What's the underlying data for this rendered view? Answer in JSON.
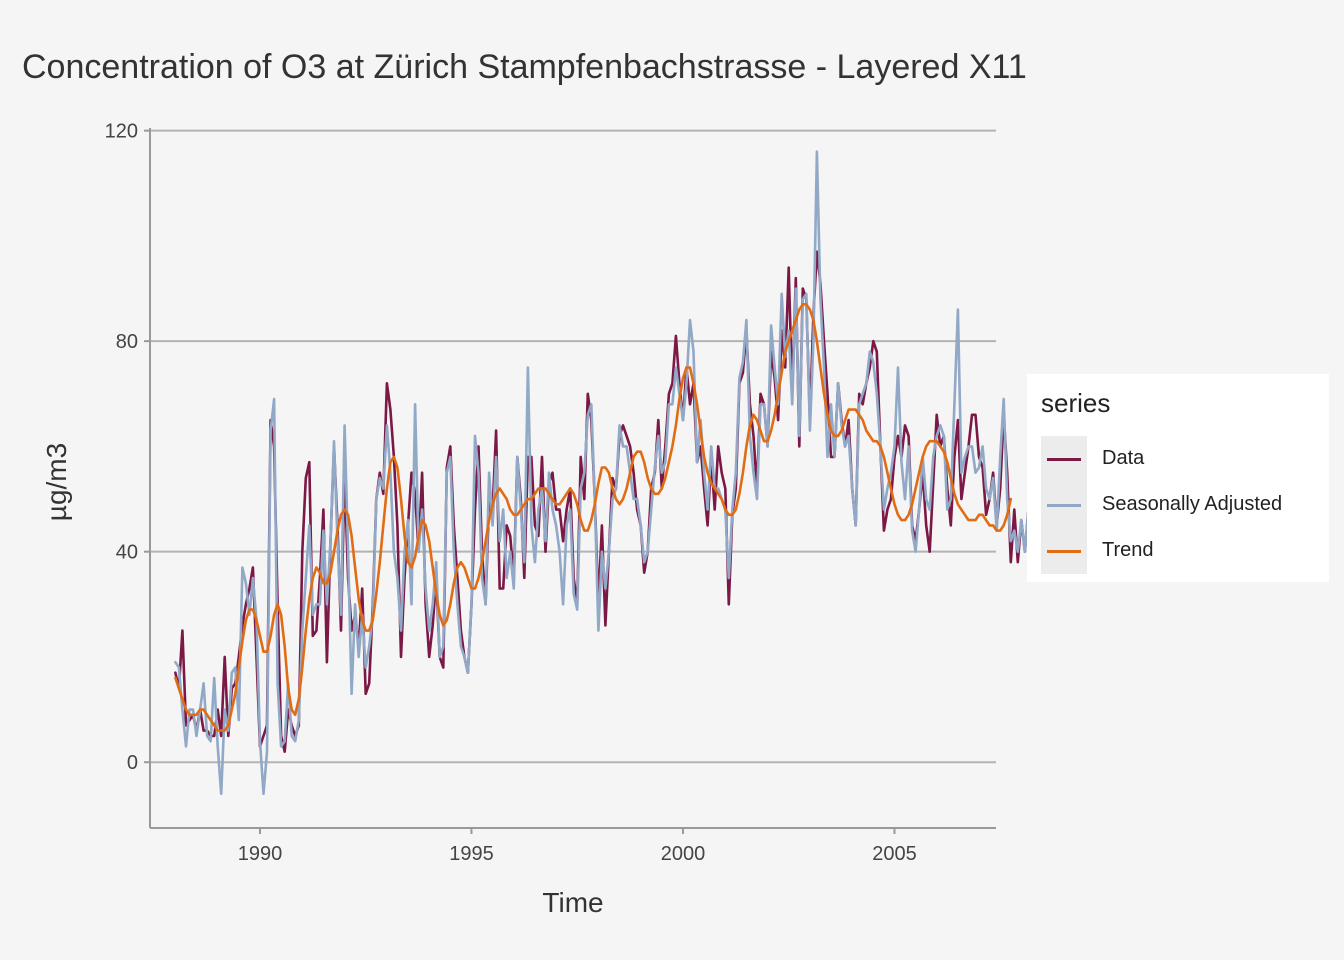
{
  "chart_data": {
    "type": "line",
    "title": "Concentration of O3 at Zürich Stampfenbachstrasse - Layered X11",
    "xlabel": "Time",
    "ylabel": "µg/m3",
    "xlim": [
      1987.4,
      2007.4
    ],
    "ylim": [
      -12.5,
      120.5
    ],
    "x_ticks": [
      1990,
      1995,
      2000,
      2005
    ],
    "y_ticks": [
      0,
      40,
      80,
      120
    ],
    "grid": "horizontal major",
    "legend": {
      "title": "series",
      "position": "right"
    },
    "series": [
      {
        "name": "Data",
        "color": "#7b1845",
        "x_start": 1988.0,
        "x_step": 0.08333,
        "values": [
          17,
          14,
          25,
          7,
          8,
          9,
          6,
          10,
          6,
          6,
          5,
          5,
          10,
          5,
          20,
          5,
          14,
          15,
          20,
          26,
          30,
          33,
          37,
          20,
          3,
          5,
          7,
          65,
          60,
          30,
          5,
          2,
          10,
          7,
          5,
          7,
          40,
          54,
          57,
          24,
          25,
          35,
          48,
          19,
          42,
          60,
          45,
          25,
          55,
          35,
          25,
          28,
          22,
          33,
          13,
          15,
          30,
          50,
          55,
          51,
          72,
          67,
          58,
          45,
          20,
          35,
          45,
          55,
          51,
          40,
          55,
          30,
          20,
          26,
          35,
          20,
          18,
          56,
          60,
          45,
          35,
          25,
          20,
          17,
          30,
          48,
          60,
          40,
          30,
          50,
          48,
          63,
          33,
          33,
          45,
          43,
          35,
          58,
          50,
          35,
          58,
          58,
          45,
          43,
          58,
          40,
          53,
          55,
          48,
          48,
          42,
          48,
          52,
          35,
          30,
          58,
          50,
          70,
          65,
          50,
          30,
          45,
          26,
          40,
          54,
          52,
          62,
          64,
          62,
          60,
          55,
          48,
          45,
          36,
          40,
          52,
          55,
          65,
          52,
          60,
          70,
          72,
          81,
          72,
          65,
          75,
          68,
          72,
          57,
          60,
          52,
          45,
          58,
          48,
          60,
          55,
          52,
          30,
          47,
          52,
          72,
          74,
          82,
          68,
          62,
          52,
          70,
          68,
          60,
          78,
          73,
          65,
          82,
          75,
          94,
          70,
          92,
          60,
          90,
          88,
          65,
          85,
          97,
          91,
          80,
          70,
          58,
          58,
          72,
          65,
          60,
          65,
          52,
          45,
          70,
          68,
          72,
          75,
          80,
          78,
          60,
          44,
          48,
          50,
          58,
          62,
          58,
          64,
          62,
          45,
          42,
          48,
          55,
          45,
          40,
          53,
          66,
          60,
          62,
          52,
          45,
          58,
          65,
          50,
          55,
          60,
          66,
          66,
          58,
          56,
          47,
          50,
          55,
          45,
          52,
          66,
          55,
          38,
          48,
          38,
          46,
          40,
          48,
          43,
          45,
          46,
          55
        ]
      },
      {
        "name": "Seasonally Adjusted",
        "color": "#91a8c7",
        "x_start": 1988.0,
        "x_step": 0.08333,
        "values": [
          19,
          18,
          10,
          3,
          10,
          10,
          5,
          10,
          15,
          5,
          4,
          16,
          3,
          -6,
          10,
          6,
          17,
          18,
          8,
          37,
          34,
          28,
          35,
          27,
          4,
          -6,
          2,
          63,
          69,
          15,
          3,
          4,
          15,
          5,
          4,
          8,
          25,
          35,
          45,
          28,
          30,
          30,
          44,
          30,
          42,
          61,
          42,
          28,
          64,
          40,
          13,
          30,
          20,
          28,
          18,
          22,
          28,
          50,
          54,
          52,
          64,
          55,
          40,
          35,
          25,
          40,
          46,
          30,
          68,
          40,
          48,
          33,
          25,
          30,
          38,
          20,
          22,
          55,
          58,
          40,
          30,
          22,
          20,
          17,
          30,
          62,
          55,
          35,
          30,
          55,
          45,
          58,
          42,
          48,
          35,
          40,
          33,
          58,
          48,
          38,
          75,
          45,
          38,
          48,
          52,
          42,
          55,
          48,
          45,
          40,
          30,
          45,
          48,
          32,
          29,
          52,
          55,
          66,
          68,
          50,
          25,
          40,
          33,
          40,
          50,
          52,
          64,
          60,
          60,
          55,
          50,
          50,
          45,
          38,
          40,
          48,
          56,
          62,
          55,
          57,
          68,
          68,
          75,
          70,
          65,
          72,
          84,
          78,
          57,
          65,
          55,
          48,
          60,
          52,
          52,
          50,
          48,
          35,
          48,
          55,
          73,
          76,
          84,
          62,
          55,
          50,
          68,
          68,
          60,
          83,
          75,
          68,
          89,
          77,
          82,
          68,
          90,
          62,
          88,
          89,
          63,
          80,
          116,
          88,
          75,
          58,
          68,
          58,
          72,
          64,
          60,
          62,
          52,
          45,
          68,
          70,
          72,
          78,
          76,
          70,
          60,
          48,
          52,
          55,
          60,
          75,
          57,
          50,
          60,
          44,
          40,
          48,
          58,
          50,
          48,
          58,
          62,
          64,
          62,
          48,
          50,
          68,
          86,
          55,
          58,
          60,
          60,
          55,
          56,
          60,
          52,
          50,
          54,
          44,
          58,
          69,
          50,
          42,
          44,
          40,
          46,
          40,
          48,
          42,
          48,
          44,
          58
        ]
      },
      {
        "name": "Trend",
        "color": "#e06d15",
        "x_start": 1988.0,
        "x_step": 0.08333,
        "values": [
          16,
          14,
          12,
          10,
          9,
          9,
          9,
          10,
          10,
          9,
          8,
          7,
          6,
          6,
          6,
          7,
          10,
          13,
          18,
          23,
          27,
          29,
          29,
          27,
          24,
          21,
          21,
          24,
          28,
          30,
          28,
          22,
          14,
          10,
          9,
          12,
          18,
          25,
          31,
          35,
          37,
          36,
          34,
          34,
          36,
          40,
          44,
          47,
          48,
          47,
          43,
          37,
          31,
          27,
          25,
          25,
          27,
          32,
          38,
          45,
          52,
          57,
          58,
          56,
          50,
          43,
          38,
          37,
          39,
          43,
          46,
          45,
          42,
          37,
          32,
          28,
          26,
          27,
          30,
          34,
          37,
          38,
          37,
          35,
          33,
          33,
          35,
          38,
          42,
          46,
          49,
          51,
          52,
          51,
          50,
          48,
          47,
          47,
          48,
          49,
          50,
          50,
          51,
          52,
          52,
          52,
          51,
          50,
          49,
          49,
          50,
          51,
          52,
          51,
          49,
          46,
          44,
          44,
          46,
          49,
          53,
          56,
          56,
          55,
          52,
          50,
          49,
          50,
          52,
          55,
          58,
          59,
          59,
          57,
          54,
          52,
          51,
          51,
          52,
          54,
          57,
          60,
          64,
          69,
          73,
          75,
          75,
          72,
          68,
          63,
          58,
          55,
          53,
          52,
          51,
          50,
          48,
          47,
          47,
          48,
          51,
          55,
          60,
          64,
          66,
          65,
          63,
          61,
          61,
          63,
          66,
          70,
          74,
          78,
          80,
          82,
          84,
          86,
          87,
          87,
          86,
          84,
          80,
          75,
          70,
          66,
          63,
          62,
          62,
          63,
          65,
          67,
          67,
          67,
          66,
          65,
          63,
          62,
          61,
          61,
          60,
          58,
          55,
          52,
          49,
          47,
          46,
          46,
          47,
          49,
          52,
          55,
          58,
          60,
          61,
          61,
          61,
          60,
          59,
          57,
          54,
          51,
          49,
          48,
          47,
          46,
          46,
          46,
          47,
          47,
          46,
          45,
          45,
          44,
          44,
          45,
          47,
          50
        ]
      }
    ]
  }
}
